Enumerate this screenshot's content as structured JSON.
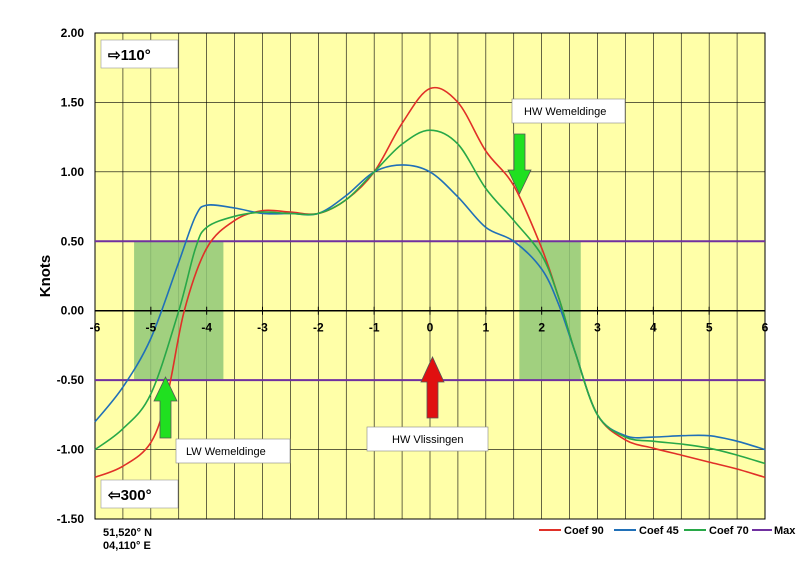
{
  "chart_data": {
    "type": "line",
    "xlim": [
      -6,
      6
    ],
    "ylim": [
      -1.5,
      2.0
    ],
    "x_ticks": [
      -6,
      -5,
      -4,
      -3,
      -2,
      -1,
      0,
      1,
      2,
      3,
      4,
      5,
      6
    ],
    "x_tick_labels": [
      "-6",
      "-5",
      "-4",
      "-3",
      "-2",
      "-1",
      "0",
      "1",
      "2",
      "3",
      "4",
      "5",
      "6"
    ],
    "y_ticks": [
      2.0,
      1.5,
      1.0,
      0.5,
      0.0,
      -0.5,
      -1.0,
      -1.5
    ],
    "y_tick_labels": [
      "2.00",
      "1.50",
      "1.00",
      "0.50",
      "0.00",
      "-0.50",
      "-1.00",
      "-1.50"
    ],
    "ylabel": "Knots",
    "grid": true,
    "legend_position": "bottom-right",
    "background_color": "#ffffa8",
    "series": [
      {
        "name": "Coef 90",
        "color": "#e03028",
        "x": [
          -6,
          -5.5,
          -5,
          -4.7,
          -4.4,
          -4.0,
          -3.5,
          -3.0,
          -2.5,
          -2.0,
          -1.5,
          -1.0,
          -0.5,
          0,
          0.5,
          1.0,
          1.5,
          2.0,
          2.3,
          2.6,
          3.0,
          3.5,
          4.0,
          4.5,
          5.0,
          5.5,
          6.0
        ],
        "y": [
          -1.2,
          -1.12,
          -0.95,
          -0.6,
          0.0,
          0.45,
          0.65,
          0.72,
          0.71,
          0.7,
          0.8,
          1.0,
          1.35,
          1.6,
          1.5,
          1.15,
          0.9,
          0.45,
          0.1,
          -0.3,
          -0.75,
          -0.93,
          -0.99,
          -1.04,
          -1.09,
          -1.14,
          -1.2
        ]
      },
      {
        "name": "Coef 45",
        "color": "#2070b8",
        "x": [
          -6,
          -5.5,
          -5,
          -4.5,
          -4.2,
          -4.0,
          -3.5,
          -3.0,
          -2.5,
          -2.0,
          -1.5,
          -1.0,
          -0.5,
          0,
          0.5,
          1.0,
          1.5,
          2.0,
          2.3,
          2.6,
          3.0,
          3.5,
          4.0,
          4.5,
          5.0,
          5.5,
          6.0
        ],
        "y": [
          -0.8,
          -0.55,
          -0.2,
          0.35,
          0.68,
          0.76,
          0.74,
          0.7,
          0.7,
          0.7,
          0.83,
          1.0,
          1.05,
          1.0,
          0.82,
          0.6,
          0.5,
          0.3,
          0.05,
          -0.3,
          -0.75,
          -0.9,
          -0.91,
          -0.9,
          -0.9,
          -0.94,
          -1.0
        ]
      },
      {
        "name": "Coef 70",
        "color": "#28a848",
        "x": [
          -6,
          -5.5,
          -5,
          -4.5,
          -4.2,
          -4.0,
          -3.5,
          -3.0,
          -2.5,
          -2.0,
          -1.5,
          -1.0,
          -0.5,
          0,
          0.5,
          1.0,
          1.5,
          2.0,
          2.3,
          2.6,
          3.0,
          3.5,
          4.0,
          4.5,
          5.0,
          5.5,
          6.0
        ],
        "y": [
          -1.0,
          -0.85,
          -0.6,
          0.0,
          0.45,
          0.6,
          0.68,
          0.71,
          0.7,
          0.7,
          0.8,
          1.0,
          1.2,
          1.3,
          1.2,
          0.88,
          0.65,
          0.4,
          0.1,
          -0.3,
          -0.75,
          -0.91,
          -0.94,
          -0.96,
          -0.99,
          -1.04,
          -1.1
        ]
      },
      {
        "name": "Max",
        "color": "#7030a0",
        "values": [
          0.5,
          -0.5
        ]
      }
    ],
    "shaded_regions": [
      {
        "x_range": [
          -5.3,
          -3.7
        ],
        "y_range": [
          -0.5,
          0.5
        ],
        "color": "#90c878"
      },
      {
        "x_range": [
          1.6,
          2.7
        ],
        "y_range": [
          -0.5,
          0.5
        ],
        "color": "#90c878"
      }
    ],
    "annotations": [
      {
        "text": "HW Wemeldinge",
        "arrow_color": "#20e020",
        "arrow_direction": "down"
      },
      {
        "text": "LW Wemeldinge",
        "arrow_color": "#20e020",
        "arrow_direction": "up"
      },
      {
        "text": "HW Vlissingen",
        "arrow_color": "#e01010",
        "arrow_direction": "up"
      }
    ],
    "direction_labels": [
      {
        "text": "⇨110°"
      },
      {
        "text": "⇦300°"
      }
    ]
  },
  "location": {
    "lat": "51,520° N",
    "lon": "04,110° E"
  }
}
